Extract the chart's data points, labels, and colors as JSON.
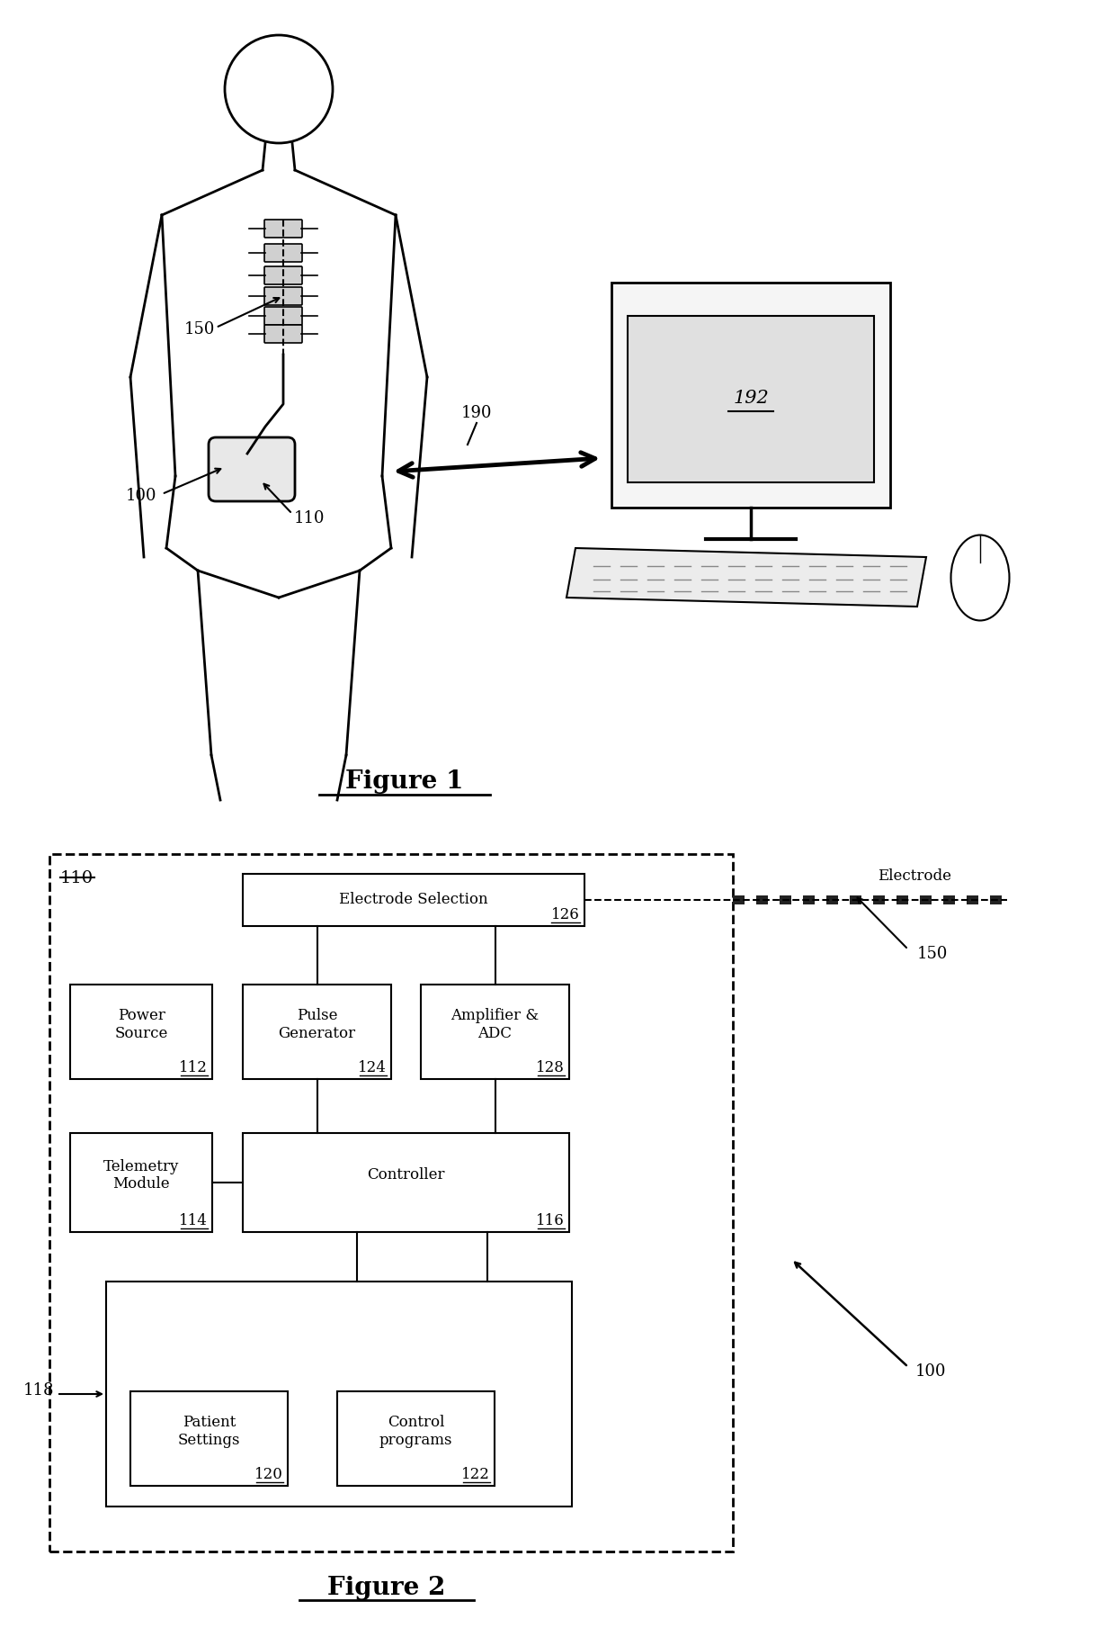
{
  "fig_width": 12.4,
  "fig_height": 18.19,
  "bg_color": "#ffffff",
  "fig1_title": "Figure 1",
  "fig2_title": "Figure 2",
  "labels": {
    "100": "100",
    "110": "110",
    "150": "150",
    "190": "190",
    "192": "192",
    "112": "112",
    "114": "114",
    "116": "116",
    "118": "118",
    "120": "120",
    "122": "122",
    "124": "124",
    "126": "126",
    "128": "128"
  },
  "box_texts": {
    "electrode_selection": "Electrode Selection",
    "power_source": "Power\nSource",
    "pulse_generator": "Pulse\nGenerator",
    "amplifier_adc": "Amplifier &\nADC",
    "telemetry_module": "Telemetry\nModule",
    "controller": "Controller",
    "patient_settings": "Patient\nSettings",
    "control_programs": "Control\nprograms",
    "electrode_label": "Electrode"
  }
}
